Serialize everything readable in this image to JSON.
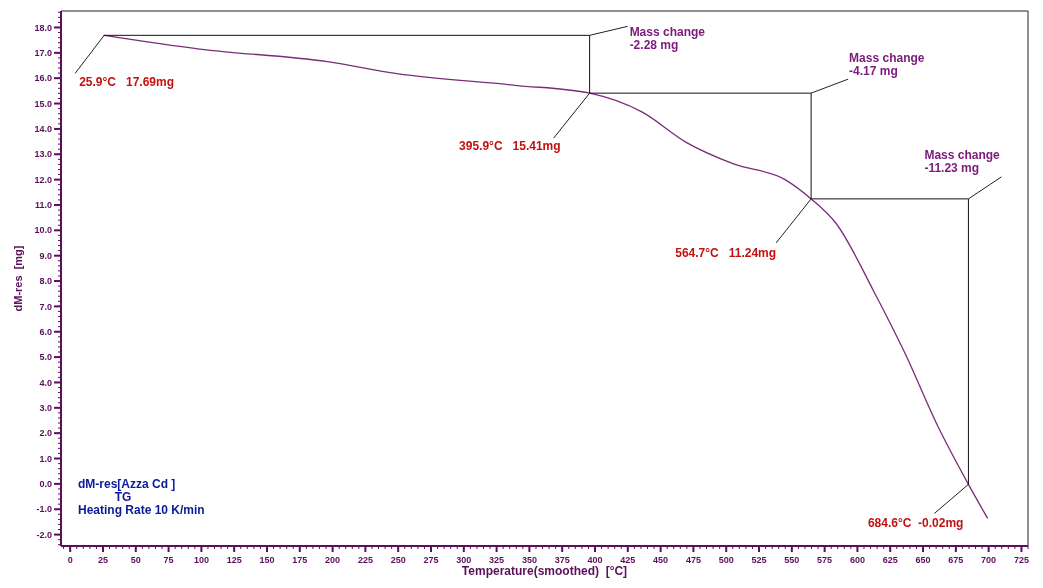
{
  "chart_data": {
    "type": "line",
    "xlabel": "Temperature(smoothed)  [°C]",
    "ylabel": "dM-res  [mg]",
    "xlim": [
      -7,
      730
    ],
    "ylim": [
      -2.45,
      18.65
    ],
    "xticks": [
      0,
      25,
      50,
      75,
      100,
      125,
      150,
      175,
      200,
      225,
      250,
      275,
      300,
      325,
      350,
      375,
      400,
      425,
      450,
      475,
      500,
      525,
      550,
      575,
      600,
      625,
      650,
      675,
      700,
      725
    ],
    "yticks": [
      {
        "value": -2,
        "label": "-2.0"
      },
      {
        "value": -1,
        "label": "-1.0"
      },
      {
        "value": 0,
        "label": "0.0"
      },
      {
        "value": 1,
        "label": "1.0"
      },
      {
        "value": 2,
        "label": "2.0"
      },
      {
        "value": 3,
        "label": "3.0"
      },
      {
        "value": 4,
        "label": "4.0"
      },
      {
        "value": 5,
        "label": "5.0"
      },
      {
        "value": 6,
        "label": "6.0"
      },
      {
        "value": 7,
        "label": "7.0"
      },
      {
        "value": 8,
        "label": "8.0"
      },
      {
        "value": 9,
        "label": "9.0"
      },
      {
        "value": 10,
        "label": "10.0"
      },
      {
        "value": 11,
        "label": "11.0"
      },
      {
        "value": 12,
        "label": "12.0"
      },
      {
        "value": 13,
        "label": "13.0"
      },
      {
        "value": 14,
        "label": "14.0"
      },
      {
        "value": 15,
        "label": "15.0"
      },
      {
        "value": 16,
        "label": "16.0"
      },
      {
        "value": 17,
        "label": "17.0"
      },
      {
        "value": 18,
        "label": "18.0"
      }
    ],
    "x": [
      25.9,
      98.6,
      196,
      249,
      339,
      395.9,
      435.7,
      469.5,
      505.6,
      544.8,
      564.7,
      583.9,
      612.5,
      635.8,
      661.4,
      684.6,
      699
    ],
    "series": [
      {
        "color": "#7a2c7a",
        "values": [
          17.69,
          17.15,
          16.65,
          16.18,
          15.72,
          15.41,
          14.67,
          13.47,
          12.62,
          12.0,
          11.24,
          10.26,
          7.59,
          5.2,
          2.26,
          -0.02,
          -1.34
        ]
      },
      {
        "color": "#111111",
        "x": [
          25.9,
          395.9,
          395.9,
          564.7,
          564.7,
          684.6,
          684.6
        ],
        "values": [
          17.69,
          17.69,
          15.41,
          15.41,
          11.24,
          11.24,
          -0.02
        ]
      }
    ],
    "annotations": [
      {
        "text": "25.9°C   17.69mg",
        "x": 25.9,
        "y": 17.69
      },
      {
        "text": "395.9°C   15.41mg",
        "x": 395.9,
        "y": 15.41
      },
      {
        "text": "564.7°C   11.24mg",
        "x": 564.7,
        "y": 11.24
      },
      {
        "text": "684.6°C  -0.02mg",
        "x": 684.6,
        "y": -0.02
      },
      {
        "text": "Mass change\n-2.28 mg",
        "x": 395.9,
        "y": 17.69
      },
      {
        "text": "Mass change\n-4.17 mg",
        "x": 564.7,
        "y": 15.41
      },
      {
        "text": "Mass change\n-11.23 mg",
        "x": 684.6,
        "y": 11.24
      },
      "dM-res[Azza Cd ]\n           TG\nHeating Rate 10 K/min"
    ],
    "grid": false,
    "marker": "none",
    "line_style": "solid"
  }
}
